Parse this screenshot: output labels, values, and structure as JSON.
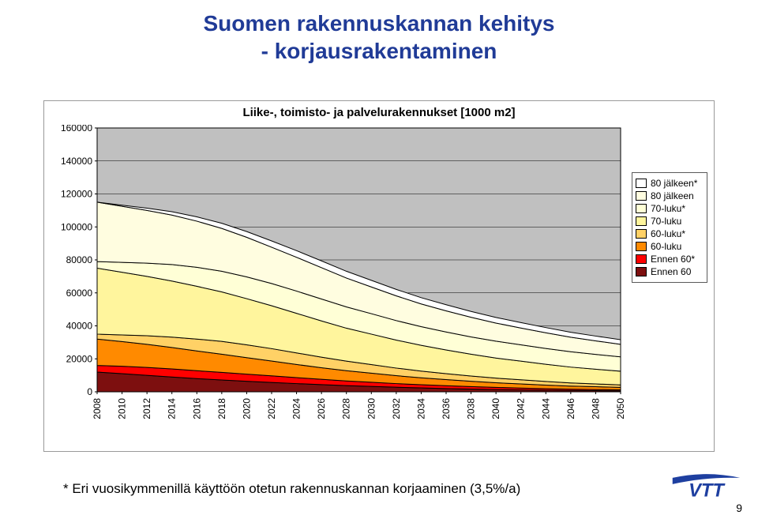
{
  "title_line1": "Suomen rakennuskannan kehitys",
  "title_line2": "- korjausrakentaminen",
  "title_color": "#203b97",
  "title_fontsize": 28,
  "chart": {
    "subtitle": "Liike-, toimisto- ja palvelurakennukset [1000 m2]",
    "subtitle_fontsize": 15,
    "type": "stacked-area",
    "ylim": [
      0,
      160000
    ],
    "ytick_step": 20000,
    "yticks": [
      "0",
      "20000",
      "40000",
      "60000",
      "80000",
      "100000",
      "120000",
      "140000",
      "160000"
    ],
    "xtick_step": 2,
    "xticks": [
      "2008",
      "2010",
      "2012",
      "2014",
      "2016",
      "2018",
      "2020",
      "2022",
      "2024",
      "2026",
      "2028",
      "2030",
      "2032",
      "2034",
      "2036",
      "2038",
      "2040",
      "2042",
      "2044",
      "2046",
      "2048",
      "2050"
    ],
    "years": [
      2008,
      2010,
      2012,
      2014,
      2016,
      2018,
      2020,
      2022,
      2024,
      2026,
      2028,
      2030,
      2032,
      2034,
      2036,
      2038,
      2040,
      2042,
      2044,
      2046,
      2048,
      2050
    ],
    "x_label_fontsize": 12,
    "y_label_fontsize": 12,
    "plot_bg": "#c0c0c0",
    "grid_color": "#000000",
    "axis_color": "#000000",
    "series": [
      {
        "key": "ennen60",
        "label": "Ennen 60",
        "color": "#7d0f0f",
        "values": [
          12000,
          11000,
          10000,
          9000,
          8000,
          7200,
          6400,
          5700,
          5000,
          4400,
          3800,
          3300,
          2800,
          2400,
          2000,
          1700,
          1400,
          1200,
          1000,
          800,
          700,
          600
        ]
      },
      {
        "key": "ennen60s",
        "label": "Ennen 60*",
        "color": "#ff0000",
        "values": [
          4000,
          4500,
          4800,
          4900,
          4800,
          4600,
          4300,
          4000,
          3600,
          3200,
          2800,
          2500,
          2200,
          1900,
          1700,
          1500,
          1300,
          1100,
          900,
          800,
          700,
          600
        ]
      },
      {
        "key": "luku60",
        "label": "60-luku",
        "color": "#ff8a00",
        "values": [
          16000,
          15000,
          14000,
          13000,
          12000,
          11000,
          10000,
          9000,
          8000,
          7000,
          6200,
          5500,
          4800,
          4200,
          3700,
          3200,
          2800,
          2500,
          2200,
          1900,
          1700,
          1500
        ]
      },
      {
        "key": "luku60s",
        "label": "60-luku*",
        "color": "#ffd166",
        "values": [
          3000,
          4000,
          5200,
          6300,
          7200,
          7800,
          7800,
          7500,
          7000,
          6400,
          5800,
          5200,
          4600,
          4100,
          3600,
          3200,
          2800,
          2500,
          2200,
          1900,
          1700,
          1500
        ]
      },
      {
        "key": "luku70",
        "label": "70-luku",
        "color": "#fff59d",
        "values": [
          40000,
          38000,
          36000,
          34000,
          32000,
          30000,
          28000,
          26000,
          24000,
          22000,
          20000,
          18500,
          17000,
          15600,
          14400,
          13200,
          12200,
          11300,
          10400,
          9600,
          8900,
          8300
        ]
      },
      {
        "key": "luku70s",
        "label": "70-luku*",
        "color": "#ffffd6",
        "values": [
          4000,
          6000,
          8000,
          10000,
          11500,
          12500,
          13200,
          13500,
          13500,
          13300,
          12900,
          12400,
          11800,
          11300,
          10900,
          10500,
          10200,
          9900,
          9600,
          9300,
          9000,
          8700
        ]
      },
      {
        "key": "jalkeen80",
        "label": "80 jälkeen",
        "color": "#fffde0",
        "values": [
          36000,
          34000,
          32000,
          30000,
          28000,
          26000,
          24000,
          22000,
          20500,
          19000,
          17500,
          16200,
          15000,
          13800,
          12800,
          11900,
          11000,
          10200,
          9500,
          8800,
          8200,
          7600
        ]
      },
      {
        "key": "jalkeen80s",
        "label": "80 jälkeen*",
        "color": "#ffffff",
        "values": [
          0,
          700,
          1400,
          2000,
          2600,
          3100,
          3500,
          3800,
          4000,
          4100,
          4100,
          4000,
          3900,
          3800,
          3700,
          3550,
          3400,
          3300,
          3150,
          3000,
          2900,
          2800
        ]
      }
    ],
    "legend_order": [
      "jalkeen80s",
      "jalkeen80",
      "luku70s",
      "luku70",
      "luku60s",
      "luku60",
      "ennen60s",
      "ennen60"
    ]
  },
  "footnote": "* Eri vuosikymmenillä käyttöön otetun rakennuskannan korjaaminen (3,5%/a)",
  "footnote_fontsize": 17,
  "page_number": 9,
  "logo_text": "VTT",
  "logo_color": "#1e3fa0"
}
